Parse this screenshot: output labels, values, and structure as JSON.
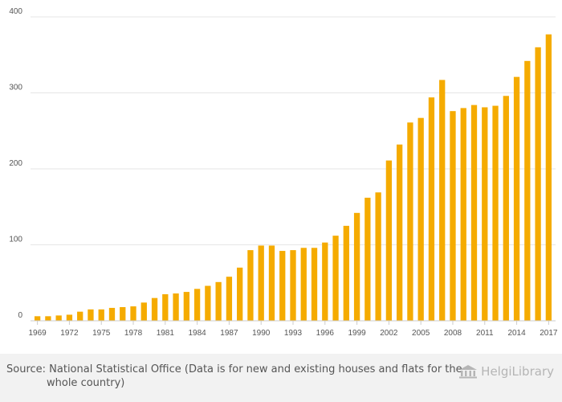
{
  "chart_data": {
    "type": "bar",
    "x": [
      1969,
      1970,
      1971,
      1972,
      1973,
      1974,
      1975,
      1976,
      1977,
      1978,
      1979,
      1980,
      1981,
      1982,
      1983,
      1984,
      1985,
      1986,
      1987,
      1988,
      1989,
      1990,
      1991,
      1992,
      1993,
      1994,
      1995,
      1996,
      1997,
      1998,
      1999,
      2000,
      2001,
      2002,
      2003,
      2004,
      2005,
      2006,
      2007,
      2008,
      2009,
      2010,
      2011,
      2012,
      2013,
      2014,
      2015,
      2016,
      2017
    ],
    "values": [
      6,
      6,
      7,
      8,
      12,
      15,
      15,
      17,
      18,
      19,
      24,
      30,
      35,
      36,
      38,
      42,
      46,
      51,
      58,
      70,
      93,
      99,
      99,
      92,
      93,
      96,
      96,
      103,
      112,
      125,
      142,
      162,
      169,
      211,
      232,
      261,
      267,
      294,
      317,
      276,
      280,
      284,
      281,
      283,
      296,
      321,
      342,
      360,
      377
    ],
    "x_tick_labels": [
      "1969",
      "1972",
      "1975",
      "1978",
      "1981",
      "1984",
      "1987",
      "1990",
      "1993",
      "1996",
      "1999",
      "2002",
      "2005",
      "2008",
      "2011",
      "2014",
      "2017"
    ],
    "y_tick_labels": [
      "0",
      "100",
      "200",
      "300",
      "400"
    ],
    "ylim": [
      0,
      400
    ],
    "title": "",
    "xlabel": "",
    "ylabel": "",
    "grid": true,
    "bar_color": "#f5ab00"
  },
  "footer": {
    "source": "Source: National Statistical Office (Data is for new and existing houses and flats for the whole country)",
    "logo_text": "HelgiLibrary"
  }
}
